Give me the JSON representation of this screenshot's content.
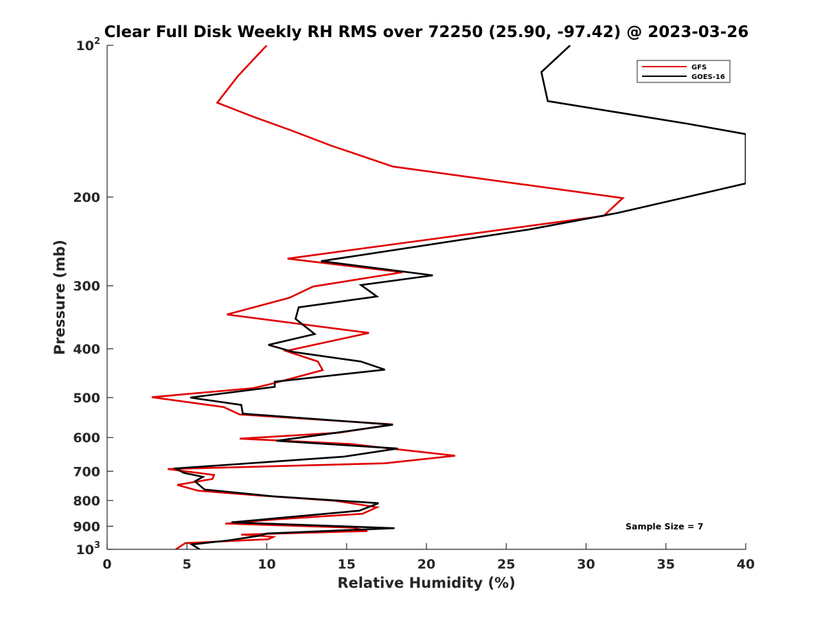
{
  "chart_data": {
    "type": "line",
    "title": "Clear Full Disk Weekly RH RMS over 72250 (25.90, -97.42) @ 2023-03-26",
    "xlabel": "Relative Humidity (%)",
    "ylabel": "Pressure (mb)",
    "xlim": [
      0,
      40
    ],
    "ylim": [
      1000,
      100
    ],
    "y_scale": "log",
    "y_reversed": true,
    "grid": false,
    "legend_position": "top-right",
    "x_ticks": [
      0,
      5,
      10,
      15,
      20,
      25,
      30,
      35,
      40
    ],
    "x_tick_labels": [
      "0",
      "5",
      "10",
      "15",
      "20",
      "25",
      "30",
      "35",
      "40"
    ],
    "y_ticks": [
      {
        "value": 100,
        "base": "10",
        "exp": "2"
      },
      {
        "value": 200,
        "base": "200",
        "exp": ""
      },
      {
        "value": 300,
        "base": "300",
        "exp": ""
      },
      {
        "value": 400,
        "base": "400",
        "exp": ""
      },
      {
        "value": 500,
        "base": "500",
        "exp": ""
      },
      {
        "value": 600,
        "base": "600",
        "exp": ""
      },
      {
        "value": 700,
        "base": "700",
        "exp": ""
      },
      {
        "value": 800,
        "base": "800",
        "exp": ""
      },
      {
        "value": 900,
        "base": "900",
        "exp": ""
      },
      {
        "value": 1000,
        "base": "10",
        "exp": "3"
      }
    ],
    "annotation": "Sample Size = 7",
    "series": [
      {
        "name": "GFS",
        "color": "#e00000",
        "points": [
          [
            10.0,
            100
          ],
          [
            8.2,
            115
          ],
          [
            6.9,
            130
          ],
          [
            9.0,
            138
          ],
          [
            11.4,
            147
          ],
          [
            14.0,
            158
          ],
          [
            17.9,
            174
          ],
          [
            32.3,
            201
          ],
          [
            31.1,
            218
          ],
          [
            20.1,
            243
          ],
          [
            11.3,
            265
          ],
          [
            18.5,
            282
          ],
          [
            12.9,
            301
          ],
          [
            11.4,
            317
          ],
          [
            7.5,
            342
          ],
          [
            16.4,
            372
          ],
          [
            11.2,
            404
          ],
          [
            13.2,
            424
          ],
          [
            13.5,
            441
          ],
          [
            10.0,
            472
          ],
          [
            9.1,
            479
          ],
          [
            2.8,
            499
          ],
          [
            7.3,
            522
          ],
          [
            8.3,
            540
          ],
          [
            17.9,
            565
          ],
          [
            14.5,
            587
          ],
          [
            8.3,
            603
          ],
          [
            15.2,
            618
          ],
          [
            21.8,
            652
          ],
          [
            17.4,
            675
          ],
          [
            3.8,
            693
          ],
          [
            6.7,
            712
          ],
          [
            6.6,
            725
          ],
          [
            4.4,
            745
          ],
          [
            5.7,
            765
          ],
          [
            9.5,
            782
          ],
          [
            14.3,
            801
          ],
          [
            16.9,
            825
          ],
          [
            16.0,
            850
          ],
          [
            10.6,
            872
          ],
          [
            7.4,
            889
          ],
          [
            15.4,
            906
          ],
          [
            16.3,
            920
          ],
          [
            8.4,
            935
          ],
          [
            9.6,
            940
          ],
          [
            10.4,
            945
          ],
          [
            10.1,
            955
          ],
          [
            4.9,
            972
          ],
          [
            4.3,
            1000
          ]
        ]
      },
      {
        "name": "GOES-16",
        "color": "#000000",
        "points": [
          [
            29.0,
            100
          ],
          [
            27.2,
            113
          ],
          [
            27.6,
            129
          ],
          [
            36.3,
            143
          ],
          [
            40.0,
            150
          ],
          [
            40.0,
            188
          ],
          [
            32.0,
            215
          ],
          [
            26.4,
            232
          ],
          [
            13.4,
            268
          ],
          [
            20.4,
            286
          ],
          [
            15.9,
            299
          ],
          [
            16.9,
            315
          ],
          [
            12.0,
            331
          ],
          [
            11.8,
            349
          ],
          [
            13.0,
            374
          ],
          [
            10.1,
            393
          ],
          [
            11.7,
            406
          ],
          [
            15.9,
            424
          ],
          [
            17.4,
            440
          ],
          [
            10.5,
            465
          ],
          [
            10.5,
            476
          ],
          [
            5.2,
            500
          ],
          [
            8.4,
            517
          ],
          [
            8.5,
            538
          ],
          [
            17.9,
            566
          ],
          [
            13.7,
            591
          ],
          [
            10.6,
            609
          ],
          [
            18.2,
            631
          ],
          [
            14.8,
            655
          ],
          [
            4.3,
            691
          ],
          [
            4.8,
            705
          ],
          [
            6.0,
            718
          ],
          [
            5.5,
            733
          ],
          [
            6.1,
            761
          ],
          [
            10.4,
            785
          ],
          [
            17.0,
            810
          ],
          [
            15.8,
            838
          ],
          [
            12.1,
            859
          ],
          [
            7.8,
            884
          ],
          [
            18.0,
            908
          ],
          [
            10.0,
            930
          ],
          [
            9.5,
            940
          ],
          [
            7.6,
            960
          ],
          [
            5.3,
            978
          ],
          [
            5.8,
            1000
          ]
        ]
      }
    ]
  }
}
